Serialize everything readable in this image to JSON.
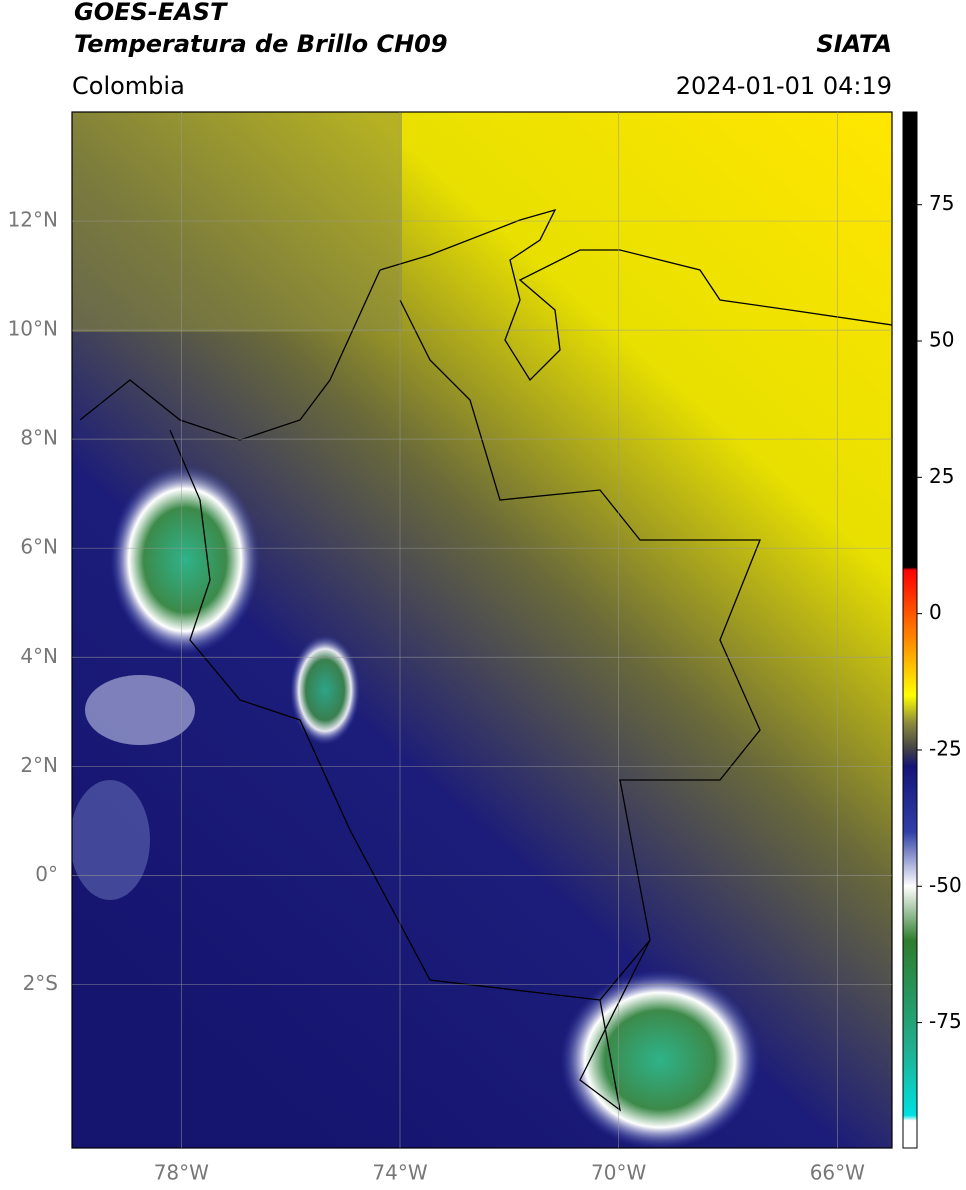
{
  "chart_data": {
    "type": "map",
    "title": "GOES-EAST",
    "subtitle": "Temperatura de Brillo CH09",
    "source": "SIATA",
    "region": "Colombia",
    "datetime": "2024-01-01 04:19",
    "xlim": [
      -80,
      -65
    ],
    "ylim": [
      -5,
      14
    ],
    "xticks": [
      {
        "value": -78,
        "label": "78°W"
      },
      {
        "value": -74,
        "label": "74°W"
      },
      {
        "value": -70,
        "label": "70°W"
      },
      {
        "value": -66,
        "label": "66°W"
      }
    ],
    "yticks": [
      {
        "value": -2,
        "label": "2°S"
      },
      {
        "value": 0,
        "label": "0°"
      },
      {
        "value": 2,
        "label": "2°N"
      },
      {
        "value": 4,
        "label": "4°N"
      },
      {
        "value": 6,
        "label": "6°N"
      },
      {
        "value": 8,
        "label": "8°N"
      },
      {
        "value": 10,
        "label": "10°N"
      },
      {
        "value": 12,
        "label": "12°N"
      }
    ],
    "grid": true,
    "colorbar": {
      "clim": [
        -98,
        92
      ],
      "ticks": [
        -75,
        -50,
        -25,
        0,
        25,
        50,
        75
      ],
      "colormap": [
        {
          "value": 92,
          "color": "#000000"
        },
        {
          "value": 8.5,
          "color": "#000000"
        },
        {
          "value": 8,
          "color": "#ff0000"
        },
        {
          "value": -5,
          "color": "#ff8c00"
        },
        {
          "value": -15,
          "color": "#ffff00"
        },
        {
          "value": -20,
          "color": "#8c8c3c"
        },
        {
          "value": -25,
          "color": "#404048"
        },
        {
          "value": -28,
          "color": "#141478"
        },
        {
          "value": -40,
          "color": "#3040a8"
        },
        {
          "value": -50,
          "color": "#ffffff"
        },
        {
          "value": -60,
          "color": "#2e7d2e"
        },
        {
          "value": -80,
          "color": "#20b090"
        },
        {
          "value": -92,
          "color": "#00e0e0"
        },
        {
          "value": -93,
          "color": "#ffffff"
        },
        {
          "value": -98,
          "color": "#ffffff"
        }
      ]
    }
  }
}
